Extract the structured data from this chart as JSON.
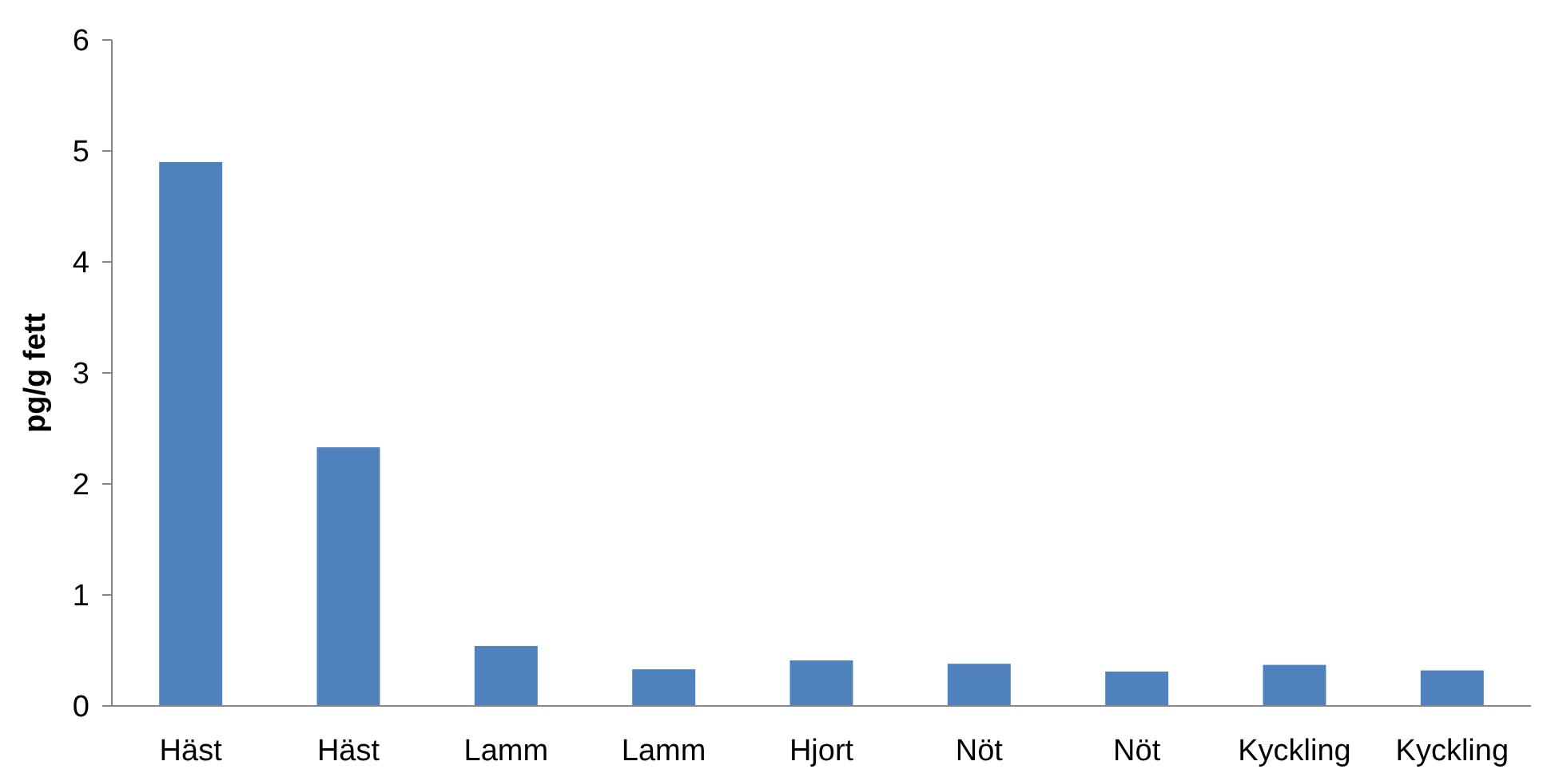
{
  "chart_data": {
    "type": "bar",
    "ylabel": "pg/g fett",
    "categories": [
      "Häst",
      "Häst",
      "Lamm",
      "Lamm",
      "Hjort",
      "Nöt",
      "Nöt",
      "Kyckling",
      "Kyckling"
    ],
    "values": [
      4.9,
      2.33,
      0.54,
      0.33,
      0.41,
      0.38,
      0.31,
      0.37,
      0.32
    ],
    "color": "#4f81bd",
    "ylim": [
      0,
      6
    ],
    "yticks": [
      0,
      1,
      2,
      3,
      4,
      5,
      6
    ],
    "grid": false
  }
}
